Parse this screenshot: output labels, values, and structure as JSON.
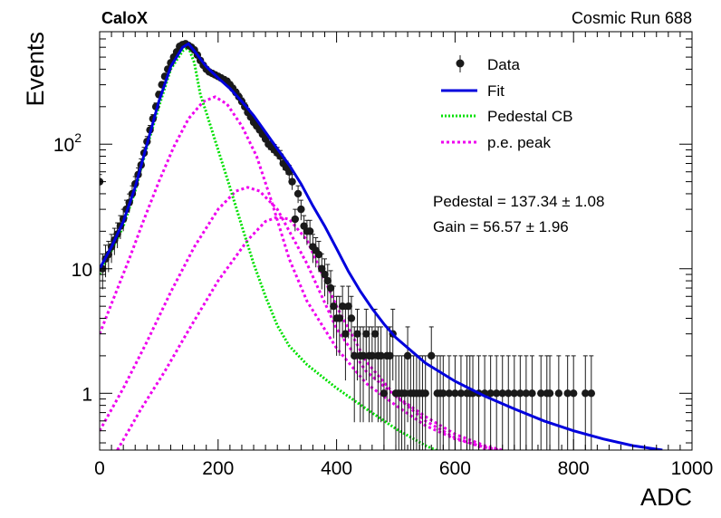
{
  "chart_data": {
    "type": "scatter",
    "title_left": "CaloX",
    "title_right": "Cosmic Run 688",
    "xlabel": "ADC",
    "ylabel": "Events",
    "xlim": [
      0,
      1000
    ],
    "ylim": [
      0.35,
      800
    ],
    "yscale": "log",
    "x_ticks": [
      0,
      200,
      400,
      600,
      800,
      1000
    ],
    "y_ticks": [
      {
        "value": 1,
        "label": "1"
      },
      {
        "value": 10,
        "label": "10"
      },
      {
        "value": 100,
        "label": "10",
        "sup": "2"
      }
    ],
    "legend": {
      "position": "top-right",
      "entries": [
        {
          "label": "Data",
          "style": "marker"
        },
        {
          "label": "Fit",
          "style": "solid"
        },
        {
          "label": "Pedestal CB",
          "style": "dotted"
        },
        {
          "label": "p.e. peak",
          "style": "dotted"
        }
      ]
    },
    "annotations": [
      {
        "label": "Pedestal = 137.34",
        "pm": "±",
        "value": "1.08"
      },
      {
        "label": "Gain = 56.57",
        "pm": "±",
        "value": "1.96"
      }
    ],
    "colors": {
      "data": "#1a1a1a",
      "fit": "#0000dd",
      "pedestal": "#00e000",
      "pe_peak": "#ee00ee"
    },
    "series": [
      {
        "name": "Data",
        "x": [
          0,
          5,
          10,
          15,
          20,
          25,
          30,
          35,
          40,
          45,
          50,
          55,
          60,
          65,
          70,
          75,
          80,
          85,
          90,
          95,
          100,
          105,
          110,
          115,
          120,
          125,
          130,
          135,
          140,
          145,
          150,
          155,
          160,
          165,
          170,
          175,
          180,
          185,
          190,
          195,
          200,
          205,
          210,
          215,
          220,
          225,
          230,
          235,
          240,
          245,
          250,
          255,
          260,
          265,
          270,
          275,
          280,
          285,
          290,
          295,
          300,
          305,
          310,
          315,
          320,
          325,
          330,
          335,
          340,
          345,
          350,
          355,
          360,
          365,
          370,
          375,
          380,
          385,
          390,
          395,
          400,
          405,
          410,
          415,
          420,
          425,
          430,
          435,
          440,
          445,
          450,
          455,
          460,
          465,
          470,
          475,
          480,
          485,
          490,
          495,
          500,
          505,
          510,
          515,
          520,
          525,
          530,
          535,
          540,
          545,
          550,
          560,
          570,
          575,
          580,
          590,
          600,
          610,
          620,
          625,
          630,
          640,
          650,
          660,
          670,
          680,
          690,
          700,
          710,
          720,
          730,
          745,
          755,
          760,
          775,
          790,
          800,
          820,
          830
        ],
        "y": [
          50,
          10,
          12,
          13,
          15,
          17,
          19,
          22,
          25,
          30,
          34,
          40,
          48,
          57,
          68,
          85,
          105,
          130,
          160,
          200,
          250,
          300,
          350,
          400,
          450,
          500,
          550,
          610,
          630,
          640,
          620,
          600,
          570,
          520,
          470,
          430,
          400,
          380,
          370,
          360,
          350,
          340,
          330,
          320,
          300,
          280,
          260,
          240,
          220,
          200,
          180,
          165,
          150,
          140,
          130,
          120,
          110,
          100,
          95,
          90,
          85,
          80,
          70,
          65,
          60,
          50,
          25,
          40,
          30,
          22,
          20,
          20,
          15,
          14,
          13,
          10,
          9,
          8,
          7,
          5,
          4,
          4,
          5,
          3,
          5,
          4,
          2,
          3,
          2,
          2,
          3,
          2,
          2,
          3,
          2,
          2,
          1,
          2,
          2,
          3,
          1,
          1,
          1,
          1,
          2,
          1,
          1,
          1,
          1,
          1,
          1,
          2,
          1,
          1,
          1,
          1,
          1,
          1,
          1,
          1,
          1,
          1,
          1,
          1,
          1,
          1,
          1,
          1,
          1,
          1,
          1,
          1,
          1,
          1,
          1,
          1,
          1,
          1,
          1
        ]
      },
      {
        "name": "Fit",
        "x": [
          0,
          20,
          40,
          60,
          80,
          100,
          120,
          140,
          150,
          160,
          180,
          200,
          220,
          240,
          260,
          280,
          300,
          320,
          340,
          360,
          380,
          400,
          420,
          440,
          460,
          480,
          500,
          550,
          600,
          650,
          700,
          750,
          800,
          850,
          900,
          950
        ],
        "y": [
          10,
          15,
          24,
          45,
          100,
          220,
          420,
          600,
          640,
          560,
          420,
          340,
          280,
          220,
          170,
          125,
          92,
          68,
          48,
          32,
          22,
          14.5,
          9.5,
          6.6,
          4.8,
          3.6,
          2.8,
          1.75,
          1.25,
          0.95,
          0.75,
          0.6,
          0.5,
          0.43,
          0.38,
          0.35
        ]
      },
      {
        "name": "Pedestal CB",
        "x": [
          0,
          20,
          40,
          60,
          80,
          100,
          120,
          140,
          150,
          160,
          170,
          180,
          200,
          220,
          240,
          260,
          280,
          300,
          320,
          350,
          400,
          450,
          500,
          550,
          600
        ],
        "y": [
          9,
          14,
          22,
          42,
          95,
          200,
          400,
          560,
          600,
          450,
          250,
          180,
          90,
          45,
          22,
          11,
          6,
          3.5,
          2.4,
          1.7,
          1.1,
          0.75,
          0.52,
          0.38,
          0.3
        ]
      },
      {
        "name": "p.e. peak 1",
        "x": [
          0,
          25,
          50,
          75,
          100,
          125,
          150,
          175,
          195,
          215,
          240,
          265,
          290,
          320,
          350,
          400,
          450,
          500,
          550,
          600,
          650,
          700
        ],
        "y": [
          3,
          6,
          12,
          25,
          50,
          95,
          160,
          220,
          240,
          210,
          140,
          80,
          35,
          12,
          5.5,
          2.3,
          1.2,
          0.8,
          0.55,
          0.43,
          0.37,
          0.33
        ]
      },
      {
        "name": "p.e. peak 2",
        "x": [
          0,
          40,
          80,
          120,
          160,
          200,
          230,
          250,
          270,
          300,
          350,
          400,
          450,
          500,
          550,
          600,
          650,
          700
        ],
        "y": [
          0.5,
          1.1,
          2.6,
          6.5,
          15,
          30,
          42,
          45,
          42,
          30,
          11,
          3.3,
          1.5,
          0.95,
          0.65,
          0.47,
          0.38,
          0.33
        ]
      },
      {
        "name": "p.e. peak 3",
        "x": [
          30,
          70,
          110,
          150,
          200,
          250,
          280,
          300,
          320,
          350,
          400,
          450,
          500,
          550,
          600,
          650,
          700
        ],
        "y": [
          0.35,
          0.75,
          1.5,
          3.2,
          8,
          17,
          24,
          26,
          25,
          17,
          5,
          1.8,
          0.95,
          0.6,
          0.44,
          0.36,
          0.32
        ]
      }
    ]
  }
}
